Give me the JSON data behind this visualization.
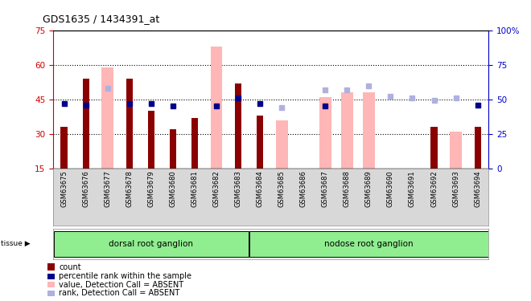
{
  "title": "GDS1635 / 1434391_at",
  "samples": [
    "GSM63675",
    "GSM63676",
    "GSM63677",
    "GSM63678",
    "GSM63679",
    "GSM63680",
    "GSM63681",
    "GSM63682",
    "GSM63683",
    "GSM63684",
    "GSM63685",
    "GSM63686",
    "GSM63687",
    "GSM63688",
    "GSM63689",
    "GSM63690",
    "GSM63691",
    "GSM63692",
    "GSM63693",
    "GSM63694"
  ],
  "count_values": [
    33,
    54,
    null,
    54,
    40,
    32,
    37,
    null,
    52,
    38,
    null,
    null,
    null,
    null,
    null,
    null,
    null,
    33,
    null,
    33
  ],
  "rank_values": [
    47,
    46,
    null,
    47,
    47,
    45,
    null,
    45,
    51,
    47,
    null,
    null,
    45,
    null,
    null,
    null,
    null,
    null,
    null,
    46
  ],
  "absent_value_values": [
    null,
    null,
    59,
    null,
    null,
    null,
    null,
    68,
    null,
    null,
    36,
    null,
    46,
    48,
    48,
    null,
    null,
    null,
    31,
    null
  ],
  "absent_rank_values": [
    null,
    null,
    58,
    null,
    null,
    null,
    null,
    null,
    null,
    null,
    44,
    null,
    57,
    57,
    60,
    52,
    51,
    49,
    51,
    null
  ],
  "tissue_groups": [
    {
      "label": "dorsal root ganglion",
      "start": 0,
      "end": 8,
      "color": "#90ee90"
    },
    {
      "label": "nodose root ganglion",
      "start": 9,
      "end": 19,
      "color": "#90ee90"
    }
  ],
  "left_ylim": [
    15,
    75
  ],
  "right_ylim": [
    0,
    100
  ],
  "left_yticks": [
    15,
    30,
    45,
    60,
    75
  ],
  "right_yticks": [
    0,
    25,
    50,
    75,
    100
  ],
  "right_yticklabels": [
    "0",
    "25",
    "50",
    "75",
    "100%"
  ],
  "bar_color": "#8b0000",
  "absent_bar_color": "#ffb6b6",
  "rank_color": "#00008b",
  "absent_rank_color": "#b0b0e0",
  "grid_color": "black",
  "bg_color": "#d8d8d8",
  "axis_label_color_left": "#cc0000",
  "axis_label_color_right": "#0000cc"
}
